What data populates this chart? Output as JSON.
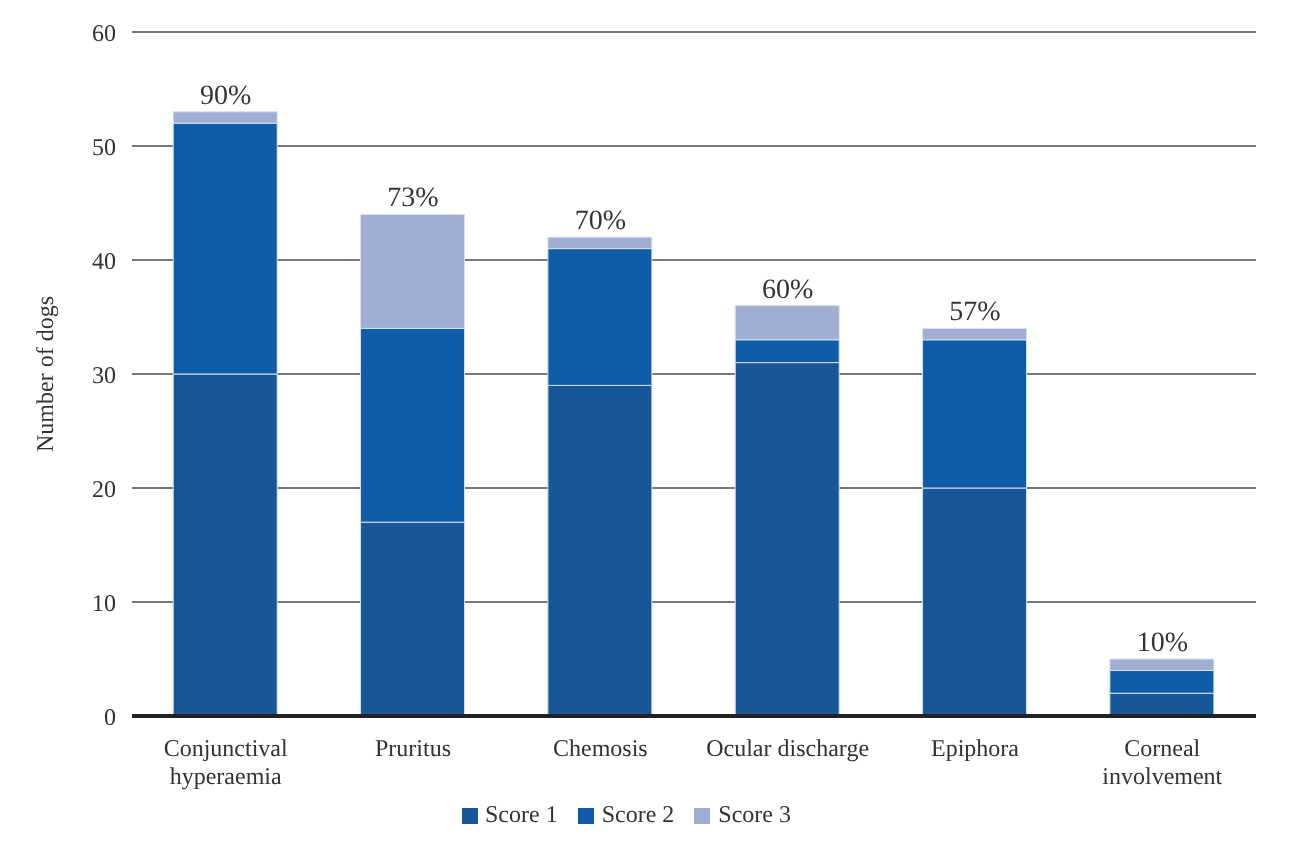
{
  "chart_data": {
    "type": "bar",
    "stacked": true,
    "ylabel": "Number of dogs",
    "categories": [
      "Conjunctival hyperaemia",
      "Pruritus",
      "Chemosis",
      "Ocular discharge",
      "Epiphora",
      "Corneal involvement"
    ],
    "series": [
      {
        "name": "Score 1",
        "color": "#175697",
        "values": [
          30,
          17,
          29,
          31,
          20,
          2
        ]
      },
      {
        "name": "Score 2",
        "color": "#0f5ca8",
        "values": [
          22,
          17,
          12,
          2,
          13,
          2
        ]
      },
      {
        "name": "Score 3",
        "color": "#a0aed4",
        "values": [
          1,
          10,
          1,
          3,
          1,
          1
        ]
      }
    ],
    "annotations": [
      {
        "text": "90%",
        "x": "Conjunctival hyperaemia",
        "y": 53
      },
      {
        "text": "73%",
        "x": "Pruritus",
        "y": 44
      },
      {
        "text": "70%",
        "x": "Chemosis",
        "y": 42
      },
      {
        "text": "60%",
        "x": "Ocular discharge",
        "y": 36
      },
      {
        "text": "57%",
        "x": "Epiphora",
        "y": 34
      },
      {
        "text": "10%",
        "x": "Corneal involvement",
        "y": 5
      }
    ],
    "ylim": [
      0,
      60
    ],
    "yticks": [
      0,
      10,
      20,
      30,
      40,
      50,
      60
    ],
    "grid": "y",
    "legend": "bottom"
  }
}
